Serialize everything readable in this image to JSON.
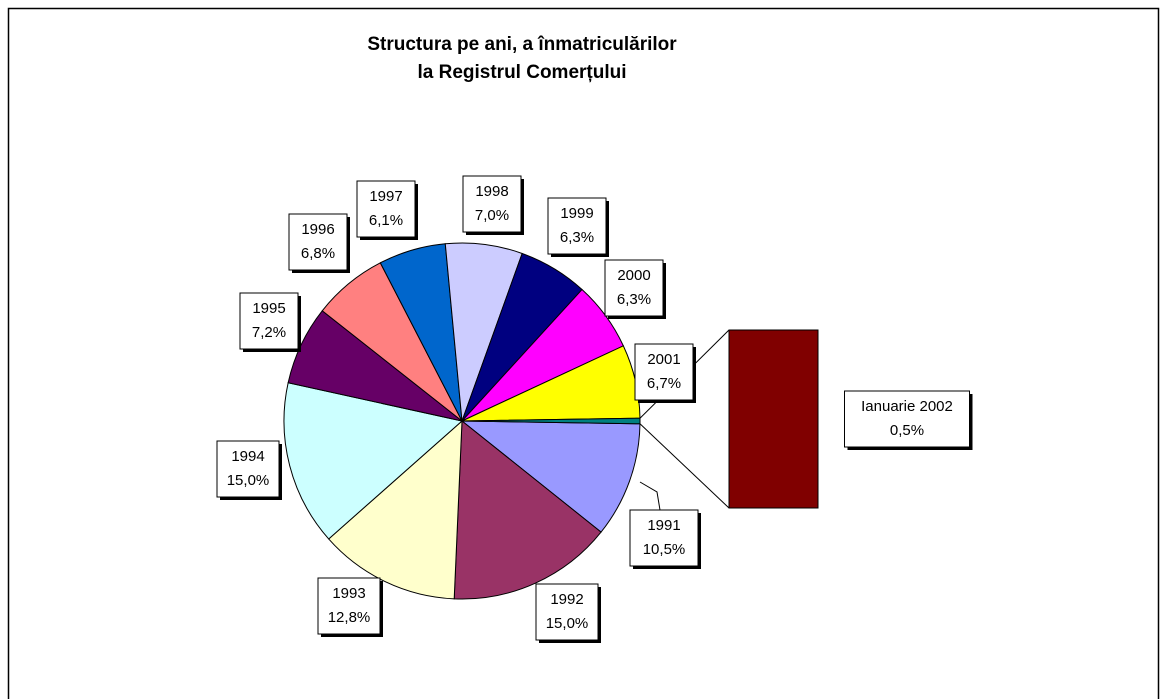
{
  "chart_data": {
    "type": "pie-of-bar",
    "title": [
      "Structura pe ani, a înmatriculărilor",
      "la Registrul Comerțului"
    ],
    "categories": [
      "1991",
      "1992",
      "1993",
      "1994",
      "1995",
      "1996",
      "1997",
      "1998",
      "1999",
      "2000",
      "2001",
      "Ianuarie 2002"
    ],
    "values": [
      10.5,
      15.0,
      12.8,
      15.0,
      7.2,
      6.8,
      6.1,
      7.0,
      6.3,
      6.3,
      6.7,
      0.5
    ],
    "value_labels": [
      "10,5%",
      "15,0%",
      "12,8%",
      "15,0%",
      "7,2%",
      "6,8%",
      "6,1%",
      "7,0%",
      "6,3%",
      "6,3%",
      "6,7%",
      "0,5%"
    ],
    "colors": [
      "#9999ff",
      "#993366",
      "#ffffcc",
      "#ccffff",
      "#660066",
      "#ff8080",
      "#0066cc",
      "#ccccff",
      "#000080",
      "#ff00ff",
      "#ffff00",
      "#008080"
    ],
    "bar_color": "#800000"
  }
}
